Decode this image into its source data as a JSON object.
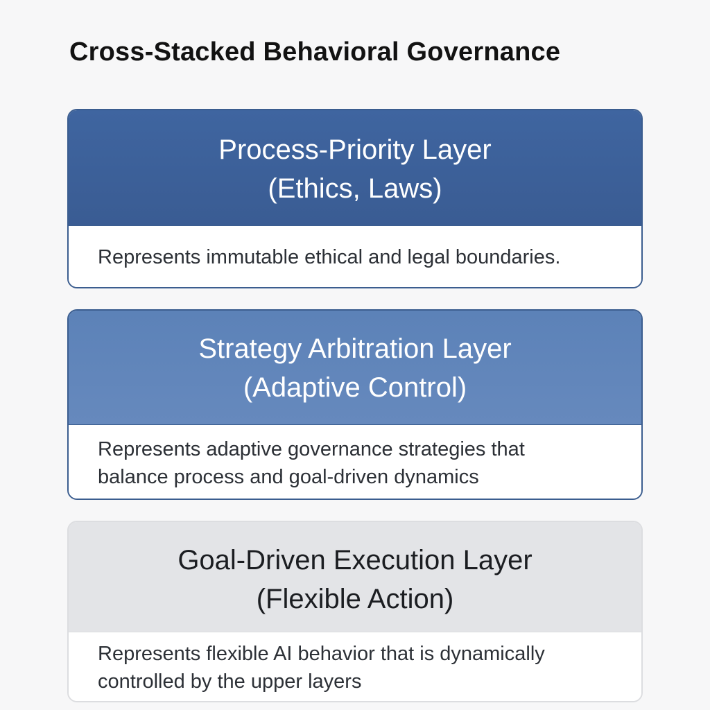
{
  "title": "Cross-Stacked Behavioral Governance",
  "layers": [
    {
      "heading": "Process-Priority Layer",
      "subheading": "(Ethics, Laws)",
      "description_lines": [
        "Represents immutable ethical and legal boundaries."
      ],
      "header_color": "#3c609a",
      "header_text_color": "#ffffff"
    },
    {
      "heading": "Strategy Arbitration Layer",
      "subheading": "(Adaptive Control)",
      "description_lines": [
        "Represents adaptive governance strategies that",
        "balance process and goal-driven dynamics"
      ],
      "header_color": "#6186bb",
      "header_text_color": "#ffffff"
    },
    {
      "heading": "Goal-Driven Execution Layer",
      "subheading": "(Flexible Action)",
      "description_lines": [
        "Represents flexible AI behavior that is dynamically",
        "controlled by the upper layers"
      ],
      "header_color": "#e3e4e7",
      "header_text_color": "#1b1d21"
    }
  ]
}
